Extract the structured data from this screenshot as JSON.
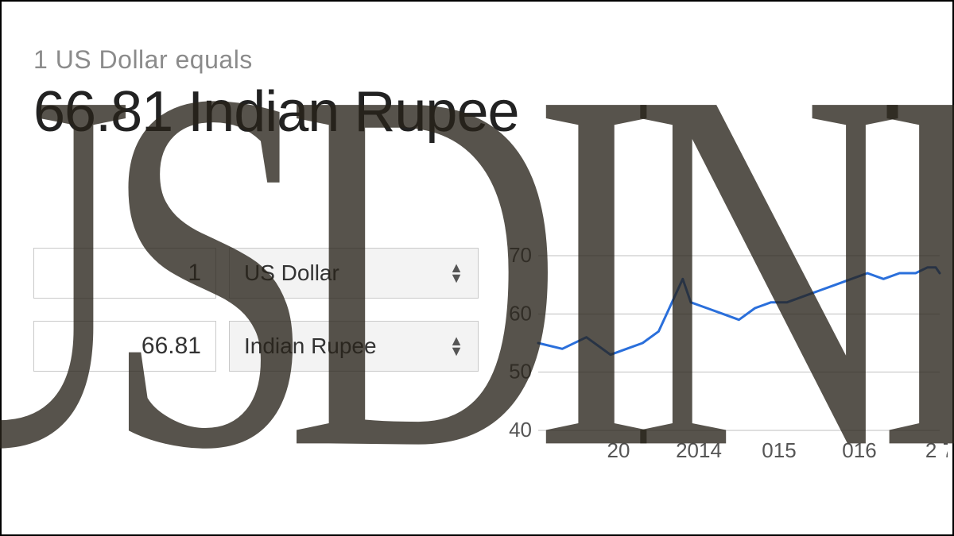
{
  "header": {
    "subheading": "1 US Dollar equals",
    "rate_text": "66.81 Indian Rupee"
  },
  "converter": {
    "from": {
      "amount": "1",
      "currency": "US Dollar"
    },
    "to": {
      "amount": "66.81",
      "currency": "Indian Rupee"
    }
  },
  "overlay": {
    "text": "USDINR"
  },
  "chart": {
    "type": "line",
    "line_color": "#2a6fdb",
    "line_width": 3,
    "grid_color": "#bfbfbf",
    "background_color": "#ffffff",
    "axis_label_color": "#555555",
    "axis_fontsize": 26,
    "ylim": [
      40,
      70
    ],
    "ytick_step": 10,
    "yticks": [
      40,
      50,
      60,
      70
    ],
    "xlim": [
      2012,
      2017
    ],
    "xticks": [
      2013,
      2014,
      2015,
      2016,
      2017
    ],
    "xtick_labels": [
      "20",
      "2014",
      "015",
      "016",
      "2  7"
    ],
    "series": [
      {
        "x": 2012.0,
        "y": 55
      },
      {
        "x": 2012.3,
        "y": 54
      },
      {
        "x": 2012.6,
        "y": 56
      },
      {
        "x": 2012.9,
        "y": 53
      },
      {
        "x": 2013.1,
        "y": 54
      },
      {
        "x": 2013.3,
        "y": 55
      },
      {
        "x": 2013.5,
        "y": 57
      },
      {
        "x": 2013.7,
        "y": 63
      },
      {
        "x": 2013.8,
        "y": 66
      },
      {
        "x": 2013.9,
        "y": 62
      },
      {
        "x": 2014.1,
        "y": 61
      },
      {
        "x": 2014.3,
        "y": 60
      },
      {
        "x": 2014.5,
        "y": 59
      },
      {
        "x": 2014.7,
        "y": 61
      },
      {
        "x": 2014.9,
        "y": 62
      },
      {
        "x": 2015.1,
        "y": 62
      },
      {
        "x": 2015.3,
        "y": 63
      },
      {
        "x": 2015.5,
        "y": 64
      },
      {
        "x": 2015.7,
        "y": 65
      },
      {
        "x": 2015.9,
        "y": 66
      },
      {
        "x": 2016.1,
        "y": 67
      },
      {
        "x": 2016.3,
        "y": 66
      },
      {
        "x": 2016.5,
        "y": 67
      },
      {
        "x": 2016.7,
        "y": 67
      },
      {
        "x": 2016.85,
        "y": 68
      },
      {
        "x": 2016.95,
        "y": 68
      },
      {
        "x": 2017.0,
        "y": 67
      }
    ]
  },
  "colors": {
    "page_bg": "#ffffff",
    "subheading": "#8b8b8b",
    "heading": "#222222",
    "input_border": "#c9c9c9",
    "select_bg": "#f3f3f3",
    "overlay_text": "rgba(40,35,25,0.78)"
  }
}
